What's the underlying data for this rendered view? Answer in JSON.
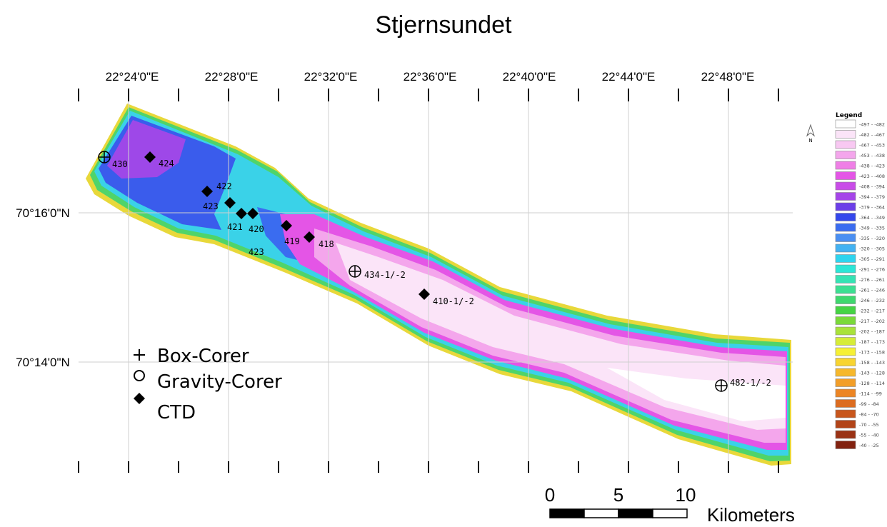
{
  "title": "Stjernsundet",
  "longitude_labels": [
    "22°24'0\"E",
    "22°28'0\"E",
    "22°32'0\"E",
    "22°36'0\"E",
    "22°40'0\"E",
    "22°44'0\"E",
    "22°48'0\"E"
  ],
  "latitude_labels": [
    "70°16'0\"N",
    "70°14'0\"N"
  ],
  "stations": [
    "430",
    "424",
    "422",
    "423",
    "421",
    "420",
    "423",
    "419",
    "418",
    "434-1/-2",
    "410-1/-2",
    "482-1/-2"
  ],
  "symbol_legend": [
    "Box-Corer",
    "Gravity-Corer",
    "CTD"
  ],
  "depth_legend": {
    "title": "Legend",
    "north_label": "N",
    "entries": [
      {
        "label": "-497 - -482",
        "color": "#ffffff"
      },
      {
        "label": "-482 - -467",
        "color": "#fbe4f8"
      },
      {
        "label": "-467 - -453",
        "color": "#f8c8f2"
      },
      {
        "label": "-453 - -438",
        "color": "#f4a6ec"
      },
      {
        "label": "-438 - -423",
        "color": "#ef7fe6"
      },
      {
        "label": "-423 - -408",
        "color": "#e455e6"
      },
      {
        "label": "-408 - -394",
        "color": "#c94ce8"
      },
      {
        "label": "-394 - -379",
        "color": "#a546e8"
      },
      {
        "label": "-379 - -364",
        "color": "#6c3fe8"
      },
      {
        "label": "-364 - -349",
        "color": "#3447ec"
      },
      {
        "label": "-349 - -335",
        "color": "#3a6cf0"
      },
      {
        "label": "-335 - -320",
        "color": "#4a8ff2"
      },
      {
        "label": "-320 - -305",
        "color": "#43b2f2"
      },
      {
        "label": "-305 - -291",
        "color": "#2ed4ee"
      },
      {
        "label": "-291 - -276",
        "color": "#2be6d6"
      },
      {
        "label": "-276 - -261",
        "color": "#35e3b4"
      },
      {
        "label": "-261 - -246",
        "color": "#3cdf92"
      },
      {
        "label": "-246 - -232",
        "color": "#3ed86e"
      },
      {
        "label": "-232 - -217",
        "color": "#45d444"
      },
      {
        "label": "-217 - -202",
        "color": "#7ad93a"
      },
      {
        "label": "-202 - -187",
        "color": "#a9e23a"
      },
      {
        "label": "-187 - -173",
        "color": "#d6ec38"
      },
      {
        "label": "-173 - -158",
        "color": "#f6f034"
      },
      {
        "label": "-158 - -143",
        "color": "#f8d430"
      },
      {
        "label": "-143 - -128",
        "color": "#f6b82c"
      },
      {
        "label": "-128 - -114",
        "color": "#f29e28"
      },
      {
        "label": "-114 - -99",
        "color": "#ec8524"
      },
      {
        "label": "-99 - -84",
        "color": "#dc6c20"
      },
      {
        "label": "-84 - -70",
        "color": "#c8561c"
      },
      {
        "label": "-70 - -55",
        "color": "#b24418"
      },
      {
        "label": "-55 - -40",
        "color": "#9a3214"
      },
      {
        "label": "-40 - -25",
        "color": "#822210"
      }
    ]
  },
  "scale_bar": {
    "labels": [
      "0",
      "5",
      "10"
    ],
    "unit": "Kilometers"
  }
}
